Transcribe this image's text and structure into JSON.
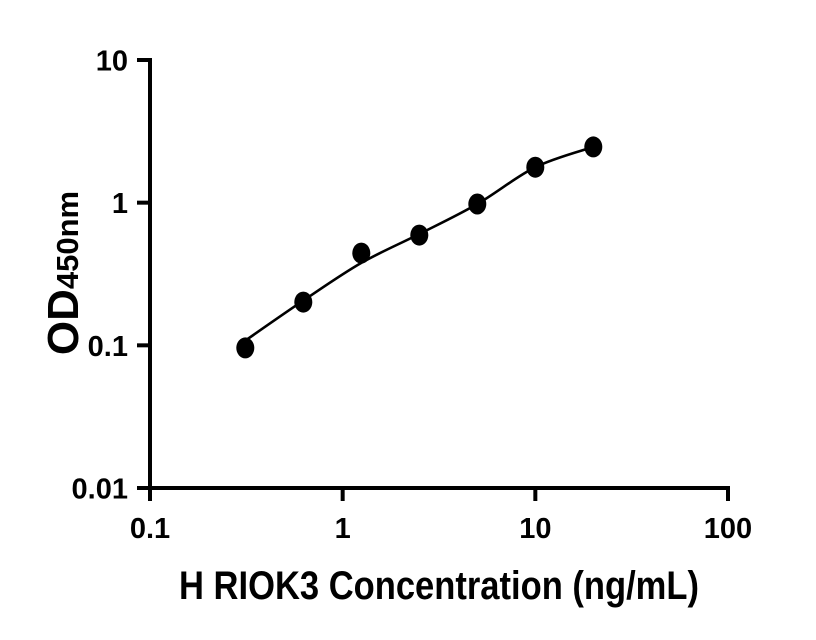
{
  "figure": {
    "kind": "scientific-plot",
    "background_color": "#ffffff",
    "foreground_color": "#000000"
  },
  "chart_data": {
    "type": "scatter",
    "subtype": "ELISA standard curve with fitted line",
    "title": "",
    "xlabel": "H RIOK3 Concentration (ng/mL)",
    "ylabel_main": "OD",
    "ylabel_sub": "450nm",
    "x_scale": "log10",
    "y_scale": "log10",
    "xlim": [
      0.1,
      100
    ],
    "ylim": [
      0.01,
      10
    ],
    "x_tick_values": [
      0.1,
      1,
      10,
      100
    ],
    "x_tick_labels": [
      "0.1",
      "1",
      "10",
      "100"
    ],
    "y_tick_values": [
      10,
      1,
      0.1,
      0.01
    ],
    "y_tick_labels": [
      "10",
      "1",
      "0.1",
      "0.01"
    ],
    "grid": false,
    "legend": null,
    "series": [
      {
        "name": "standard-data-points",
        "type": "scatter",
        "marker": "filled-circle",
        "color": "#000000",
        "x": [
          0.3125,
          0.625,
          1.25,
          2.5,
          5,
          10,
          20
        ],
        "y": [
          0.096,
          0.201,
          0.443,
          0.592,
          0.979,
          1.772,
          2.458
        ]
      },
      {
        "name": "fitted-curve",
        "type": "line",
        "color": "#000000",
        "x": [
          0.3125,
          0.625,
          1.25,
          2.5,
          5,
          10,
          20
        ],
        "y": [
          0.108,
          0.206,
          0.378,
          0.603,
          0.979,
          1.772,
          2.458
        ]
      }
    ]
  }
}
